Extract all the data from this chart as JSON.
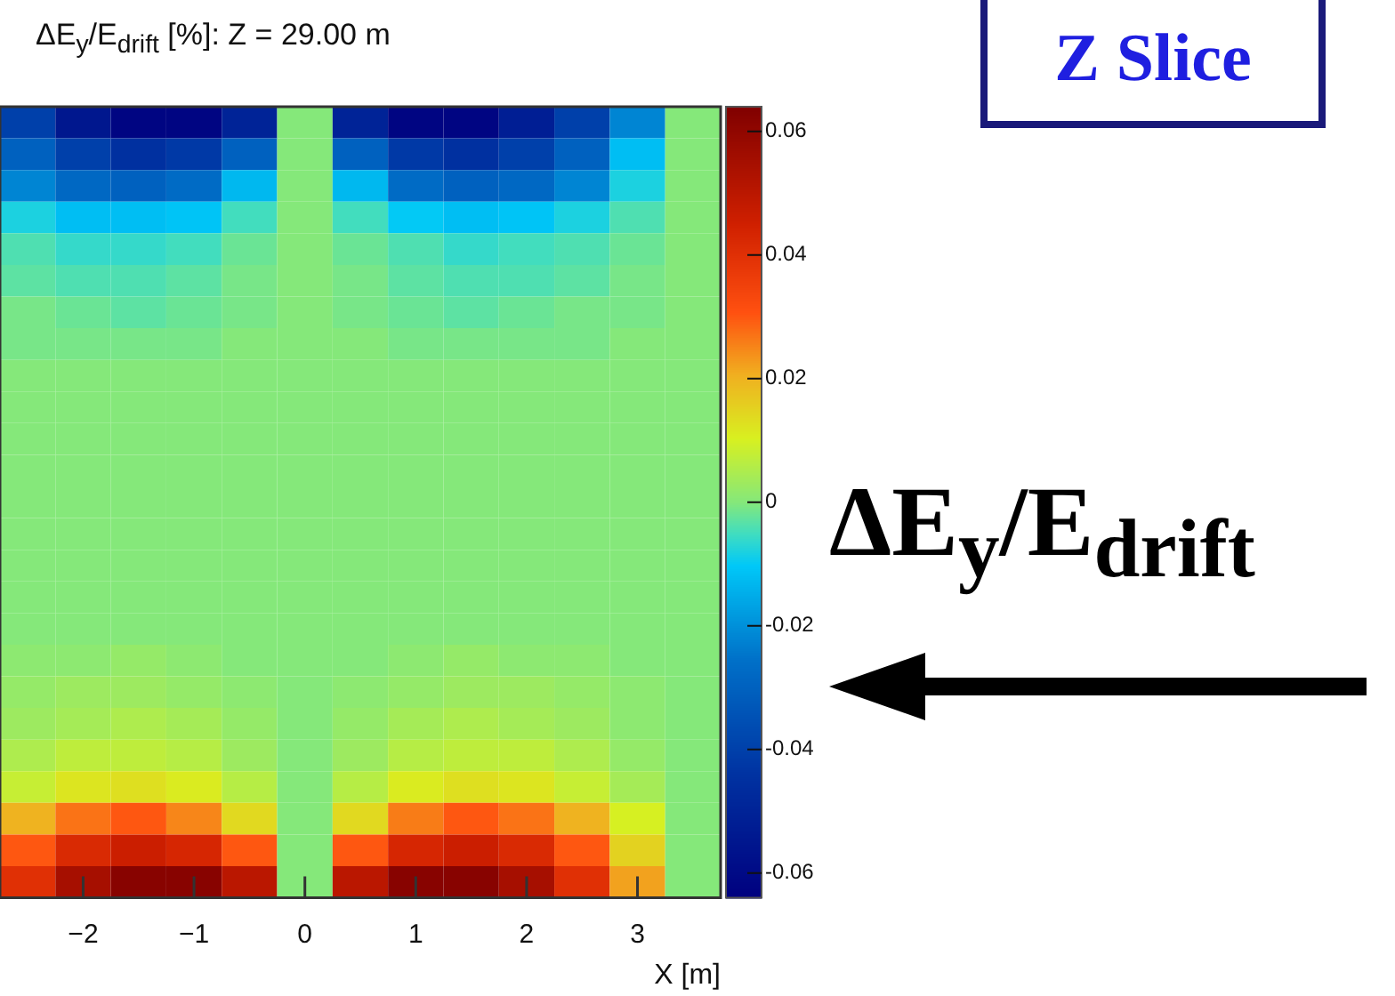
{
  "chart_data": {
    "type": "heatmap",
    "title": "ΔE$_{y}$/E$_{drift}$ [%]:   Z = 29.00 m",
    "xlabel": "X [m]",
    "categories": [
      null,
      "−2",
      null,
      "−1",
      null,
      "0",
      null,
      "1",
      null,
      "2",
      null,
      "3",
      null
    ],
    "tick_labels": "x",
    "y_categories": [
      null,
      null,
      null,
      null,
      null,
      null,
      null,
      null,
      null,
      null,
      null,
      null,
      null,
      null,
      null,
      null,
      null,
      null,
      null,
      null,
      null,
      null,
      null,
      null,
      null
    ],
    "cells": [
      [
        -0.04,
        -0.055,
        -0.062,
        -0.062,
        -0.05,
        0,
        -0.05,
        -0.062,
        -0.062,
        -0.052,
        -0.04,
        -0.022,
        0
      ],
      [
        -0.03,
        -0.04,
        -0.045,
        -0.042,
        -0.03,
        0,
        -0.03,
        -0.042,
        -0.045,
        -0.04,
        -0.03,
        -0.012,
        0
      ],
      [
        -0.022,
        -0.028,
        -0.03,
        -0.027,
        -0.013,
        0,
        -0.013,
        -0.027,
        -0.03,
        -0.028,
        -0.022,
        -0.008,
        0
      ],
      [
        -0.008,
        -0.012,
        -0.012,
        -0.011,
        -0.005,
        0,
        -0.005,
        -0.01,
        -0.012,
        -0.011,
        -0.008,
        -0.004,
        0
      ],
      [
        -0.004,
        -0.006,
        -0.006,
        -0.005,
        -0.002,
        0,
        -0.002,
        -0.004,
        -0.006,
        -0.005,
        -0.004,
        -0.002,
        0
      ],
      [
        -0.003,
        -0.004,
        -0.004,
        -0.003,
        -0.001,
        0,
        -0.001,
        -0.003,
        -0.004,
        -0.004,
        -0.003,
        -0.001,
        0
      ],
      [
        -0.001,
        -0.002,
        -0.003,
        -0.002,
        -0.001,
        0,
        -0.001,
        -0.002,
        -0.003,
        -0.002,
        -0.001,
        -0.001,
        0
      ],
      [
        -0.001,
        -0.001,
        -0.001,
        -0.001,
        0,
        0,
        0,
        -0.001,
        -0.001,
        -0.001,
        -0.001,
        0,
        0
      ],
      [
        0,
        0,
        0,
        0,
        0,
        0,
        0,
        0,
        0,
        0,
        0,
        0,
        0
      ],
      [
        0,
        0,
        0,
        0,
        0,
        0,
        0,
        0,
        0,
        0,
        0,
        0,
        0
      ],
      [
        0,
        0,
        0,
        0,
        0,
        0,
        0,
        0,
        0,
        0,
        0,
        0,
        0
      ],
      [
        0,
        0,
        0,
        0,
        0,
        0,
        0,
        0,
        0,
        0,
        0,
        0,
        0
      ],
      [
        0,
        0,
        0,
        0,
        0,
        0,
        0,
        0,
        0,
        0,
        0,
        0,
        0
      ],
      [
        0,
        0,
        0,
        0,
        0,
        0,
        0,
        0,
        0,
        0,
        0,
        0,
        0
      ],
      [
        0,
        0,
        0,
        0,
        0,
        0,
        0,
        0,
        0,
        0,
        0,
        0,
        0
      ],
      [
        0,
        0,
        0,
        0,
        0,
        0,
        0,
        0,
        0,
        0,
        0,
        0,
        0
      ],
      [
        0,
        0,
        0,
        0,
        0,
        0,
        0,
        0,
        0,
        0,
        0,
        0,
        0
      ],
      [
        0.001,
        0.001,
        0.002,
        0.001,
        0,
        0,
        0,
        0.001,
        0.002,
        0.001,
        0.001,
        0,
        0
      ],
      [
        0.002,
        0.003,
        0.003,
        0.002,
        0.001,
        0,
        0.001,
        0.002,
        0.003,
        0.003,
        0.002,
        0.001,
        0
      ],
      [
        0.003,
        0.004,
        0.005,
        0.004,
        0.002,
        0,
        0.002,
        0.004,
        0.005,
        0.004,
        0.003,
        0.001,
        0
      ],
      [
        0.005,
        0.007,
        0.007,
        0.006,
        0.003,
        0,
        0.003,
        0.006,
        0.007,
        0.007,
        0.005,
        0.002,
        0
      ],
      [
        0.008,
        0.012,
        0.013,
        0.011,
        0.006,
        0,
        0.006,
        0.011,
        0.013,
        0.012,
        0.008,
        0.004,
        0
      ],
      [
        0.02,
        0.027,
        0.03,
        0.025,
        0.014,
        0,
        0.014,
        0.026,
        0.03,
        0.027,
        0.02,
        0.01,
        0
      ],
      [
        0.03,
        0.042,
        0.046,
        0.043,
        0.03,
        0,
        0.03,
        0.043,
        0.046,
        0.042,
        0.03,
        0.015,
        0
      ],
      [
        0.04,
        0.055,
        0.062,
        0.062,
        0.05,
        0,
        0.05,
        0.062,
        0.062,
        0.055,
        0.04,
        0.022,
        0
      ]
    ],
    "clim": [
      -0.064,
      0.064
    ],
    "cticks": [
      -0.06,
      -0.04,
      -0.02,
      0,
      0.02,
      0.04,
      0.06
    ],
    "annotations": [
      "Z Slice",
      "ΔE$_{y}$/E$_{drift}$"
    ]
  }
}
